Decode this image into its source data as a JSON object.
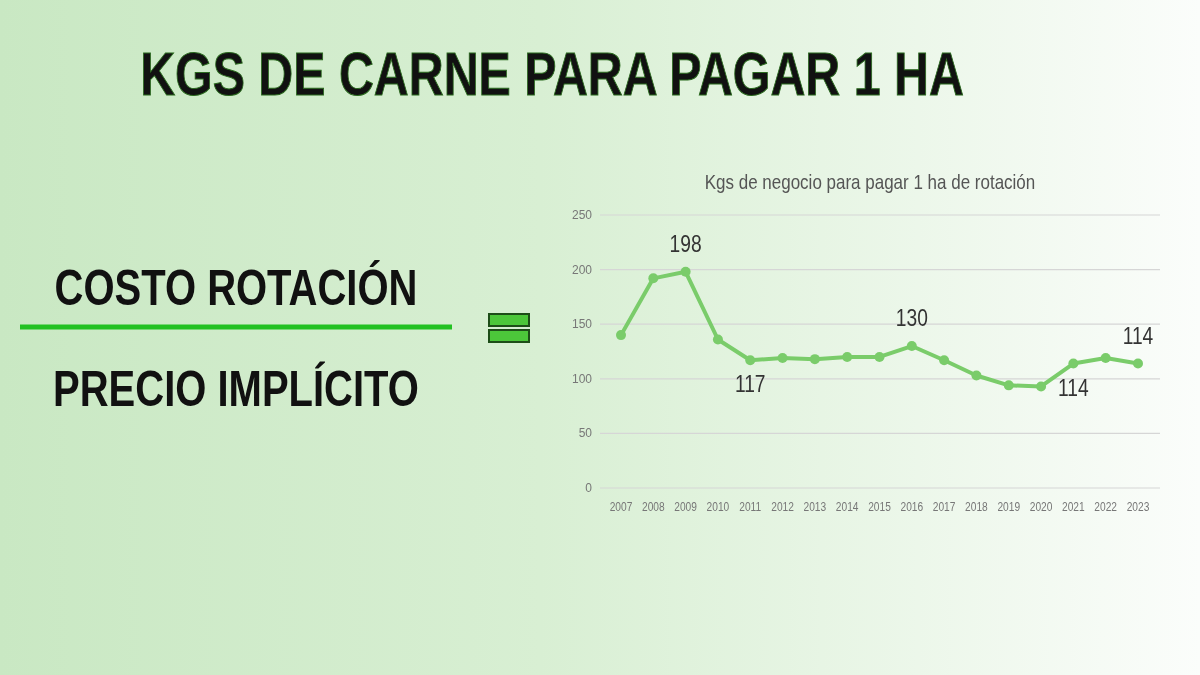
{
  "chart_data": {
    "type": "line",
    "title": "KGS DE CARNE PARA PAGAR 1 HA",
    "subtitle": "Kgs de negocio para pagar 1 ha de rotación",
    "annotations": [
      "COSTO ROTACIÓN",
      "PRECIO IMPLÍCITO"
    ],
    "categories": [
      "2007",
      "2008",
      "2009",
      "2010",
      "2011",
      "2012",
      "2013",
      "2014",
      "2015",
      "2016",
      "2017",
      "2018",
      "2019",
      "2020",
      "2021",
      "2022",
      "2023"
    ],
    "series": [
      {
        "color": "#7acc6a",
        "values": [
          140,
          192,
          198,
          136,
          117,
          119,
          118,
          120,
          120,
          130,
          117,
          103,
          94,
          93,
          114,
          119,
          114
        ],
        "value_labels": [
          null,
          null,
          "198",
          null,
          "117",
          null,
          null,
          null,
          null,
          "130",
          null,
          null,
          null,
          null,
          "114",
          null,
          "114"
        ]
      }
    ],
    "ylim": [
      0,
      250
    ],
    "yticks": [
      0,
      50,
      100,
      150,
      200,
      250
    ],
    "grid": "y",
    "marker": "circle",
    "line_style": "solid"
  }
}
